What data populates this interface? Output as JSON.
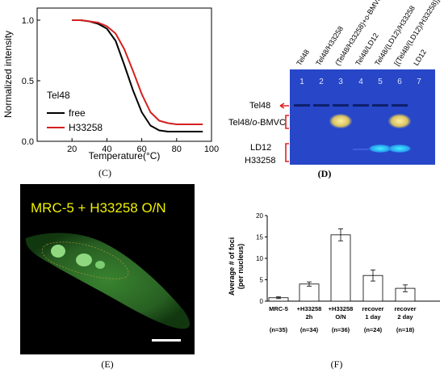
{
  "panels": {
    "C": {
      "label": "(C)",
      "chart_data": {
        "type": "line",
        "xlabel": "Temperature(°C)",
        "ylabel": "Normalized intensity",
        "xlim": [
          0,
          100
        ],
        "ylim": [
          0,
          1.1
        ],
        "xticks": [
          20,
          40,
          60,
          80,
          100
        ],
        "yticks": [
          0.0,
          0.5,
          1.0
        ],
        "legend_title": "Tel48",
        "legend_position": "lower-left",
        "series": [
          {
            "name": "free",
            "color": "#000000",
            "x": [
              20,
              25,
              30,
              35,
              40,
              45,
              50,
              55,
              60,
              65,
              70,
              75,
              80,
              85,
              90,
              95
            ],
            "y": [
              1.0,
              1.0,
              0.99,
              0.97,
              0.93,
              0.83,
              0.63,
              0.42,
              0.24,
              0.13,
              0.09,
              0.08,
              0.08,
              0.08,
              0.08,
              0.08
            ]
          },
          {
            "name": "H33258",
            "color": "#d42020",
            "x": [
              20,
              25,
              30,
              35,
              40,
              45,
              50,
              55,
              60,
              65,
              70,
              75,
              80,
              85,
              90,
              95
            ],
            "y": [
              1.0,
              1.0,
              0.99,
              0.98,
              0.95,
              0.89,
              0.76,
              0.58,
              0.39,
              0.24,
              0.17,
              0.15,
              0.14,
              0.14,
              0.14,
              0.14
            ]
          }
        ]
      }
    },
    "D": {
      "label": "(D)",
      "lane_headers": [
        "Tel48",
        "Tel48/H33258",
        "(Tel48/H33258)+o-BMVC",
        "Tel48/LD12",
        "Tel48/(LD12)/H33258",
        "[(Tel48/(LD12)/H33258)]+o-B",
        "LD12"
      ],
      "lane_numbers": [
        "1",
        "2",
        "3",
        "4",
        "5",
        "6",
        "7"
      ],
      "left_labels": {
        "tel48": "Tel48",
        "complex_prefix": "Tel48/",
        "complex_italic": "o",
        "complex_suffix": "-BMVC",
        "ld12": "LD12",
        "h33258": "H33258"
      },
      "colors": {
        "gel": "#2747c8",
        "arrow": "#e02020",
        "bracket": "#e02020"
      }
    },
    "E": {
      "label": "(E)",
      "overlay_text": "MRC-5 + H33258 O/N",
      "colors": {
        "text": "#f0f000",
        "cell": "#3fa03a"
      }
    },
    "F": {
      "label": "(F)",
      "chart_data": {
        "type": "bar",
        "ylabel": "Average # of foci",
        "ylabel2": "(per nucleus)",
        "ylim": [
          0,
          20
        ],
        "yticks": [
          0,
          5,
          10,
          15,
          20
        ],
        "categories": [
          {
            "line1": "MRC-5",
            "line2": "",
            "n": "(n=35)"
          },
          {
            "line1": "+H33258",
            "line2": "2h",
            "n": "(n=34)"
          },
          {
            "line1": "+H33258",
            "line2": "O/N",
            "n": "(n=36)"
          },
          {
            "line1": "recover",
            "line2": "1 day",
            "n": "(n=24)"
          },
          {
            "line1": "recover",
            "line2": "2 day",
            "n": "(n=18)"
          }
        ],
        "values": [
          0.8,
          4.0,
          15.5,
          6.0,
          3.0
        ],
        "errors": [
          0.2,
          0.5,
          1.4,
          1.3,
          0.8
        ]
      }
    }
  }
}
